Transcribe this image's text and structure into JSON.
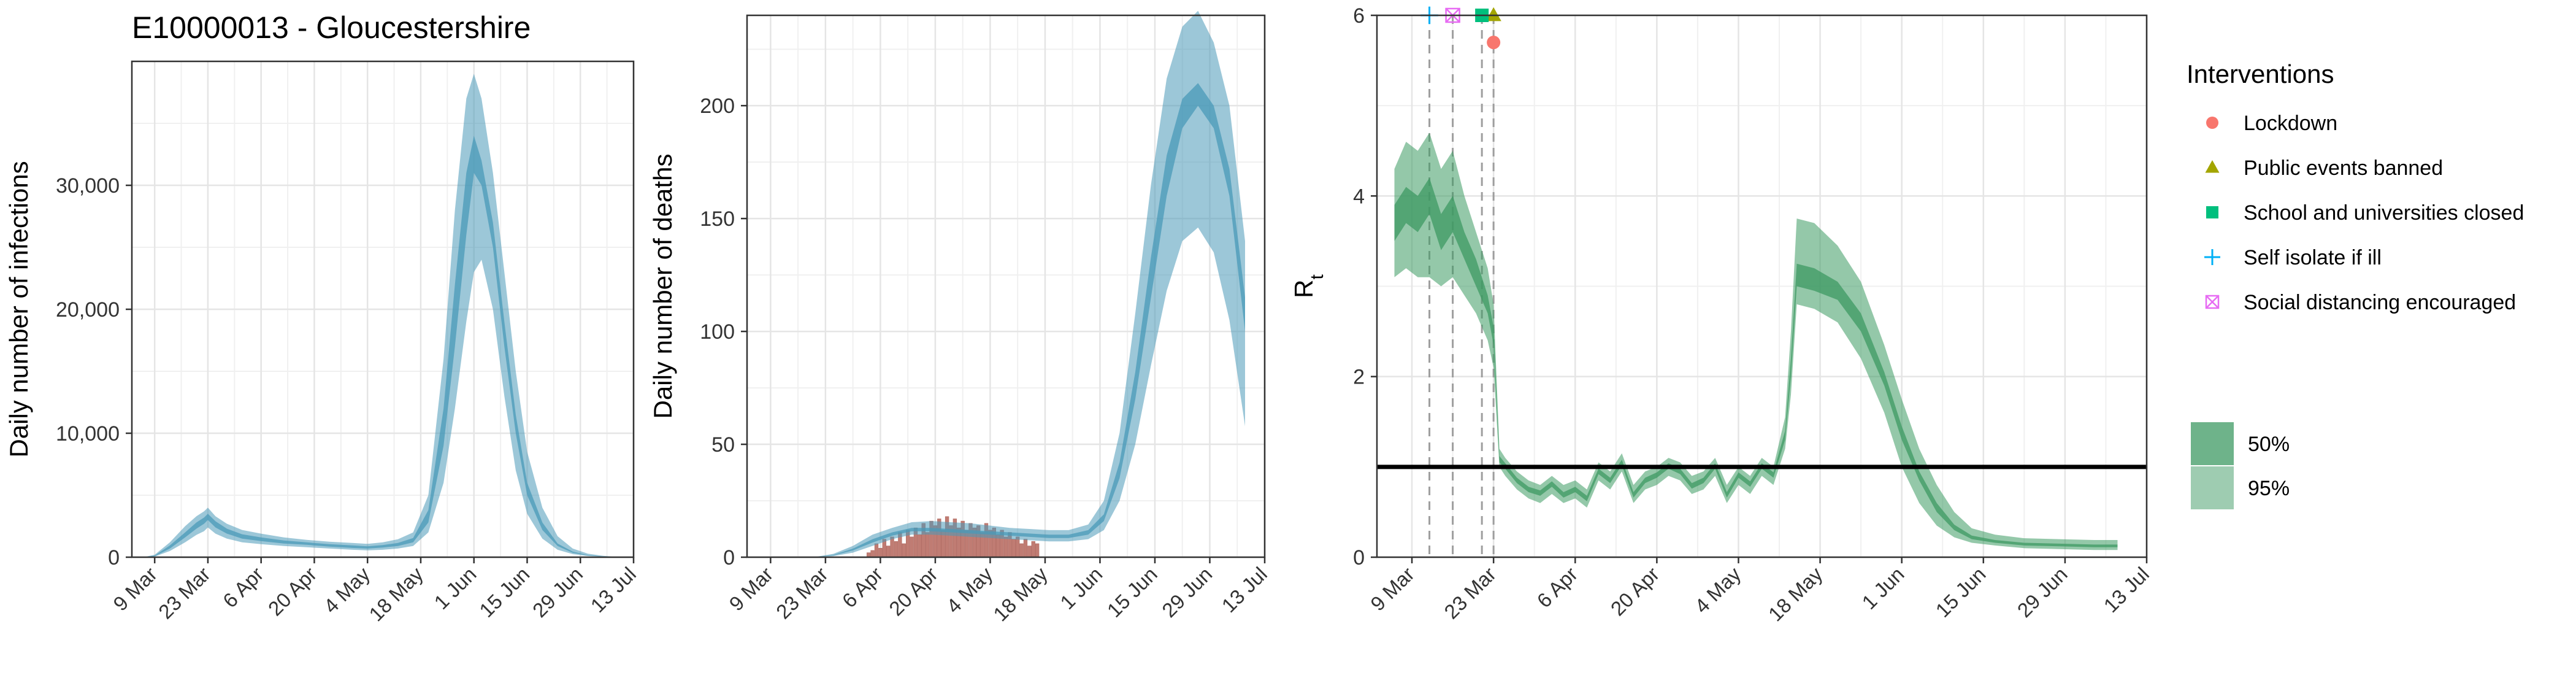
{
  "title": "E10000013 - Gloucestershire",
  "colors": {
    "infections_band": "#4a99b8",
    "deaths_band": "#4a99b8",
    "rt_band": "#3d9a63",
    "observed_deaths": "#c07c73",
    "reference_line": "#000000",
    "intervention_line": "#9e9e9e",
    "lockdown": "#f8766d",
    "public_events": "#a3a500",
    "school": "#00bf7d",
    "self_isolate": "#00b0f6",
    "social_distancing": "#e76bf3"
  },
  "chart_data": [
    {
      "type": "area",
      "xlabel": "",
      "ylabel": "Daily number of infections",
      "x_ticks": [
        "9 Mar",
        "23 Mar",
        "6 Apr",
        "20 Apr",
        "4 May",
        "18 May",
        "1 Jun",
        "15 Jun",
        "29 Jun",
        "13 Jul"
      ],
      "y_ticks": [
        "0",
        "10,000",
        "20,000",
        "30,000"
      ],
      "xlim": [
        "2020-03-03",
        "2020-07-13"
      ],
      "ylim": [
        0,
        40000
      ],
      "grid": true,
      "legend": "none",
      "series": [
        {
          "x": [
            "2020-03-06",
            "2020-03-09",
            "2020-03-13",
            "2020-03-17",
            "2020-03-20",
            "2020-03-22",
            "2020-03-23",
            "2020-03-25",
            "2020-03-28",
            "2020-04-01",
            "2020-04-06",
            "2020-04-12",
            "2020-04-18",
            "2020-04-24",
            "2020-04-30",
            "2020-05-04",
            "2020-05-08",
            "2020-05-12",
            "2020-05-16",
            "2020-05-20",
            "2020-05-24",
            "2020-05-27",
            "2020-05-30",
            "2020-06-01",
            "2020-06-03",
            "2020-06-06",
            "2020-06-09",
            "2020-06-12",
            "2020-06-15",
            "2020-06-19",
            "2020-06-23",
            "2020-06-27",
            "2020-07-01",
            "2020-07-05",
            "2020-07-08"
          ],
          "q025": [
            0,
            50,
            500,
            1200,
            1800,
            2100,
            2400,
            1900,
            1500,
            1200,
            1050,
            900,
            800,
            700,
            600,
            550,
            600,
            700,
            900,
            2000,
            6000,
            12000,
            19000,
            23000,
            24000,
            20000,
            13000,
            7000,
            3500,
            1500,
            600,
            250,
            100,
            40,
            15
          ],
          "q25": [
            0,
            80,
            700,
            1600,
            2300,
            2700,
            3000,
            2400,
            1900,
            1500,
            1300,
            1100,
            1000,
            850,
            750,
            700,
            780,
            900,
            1200,
            2800,
            9000,
            17000,
            26000,
            31000,
            30000,
            25000,
            17000,
            10000,
            5000,
            2200,
            900,
            350,
            130,
            50,
            20
          ],
          "q75": [
            0,
            130,
            950,
            2000,
            2800,
            3200,
            3500,
            2900,
            2300,
            1850,
            1600,
            1350,
            1200,
            1050,
            950,
            880,
            980,
            1150,
            1550,
            3800,
            12000,
            22000,
            31000,
            34000,
            32000,
            27000,
            19000,
            11500,
            6000,
            2800,
            1100,
            450,
            170,
            70,
            25
          ],
          "q975": [
            0,
            200,
            1200,
            2500,
            3300,
            3700,
            4000,
            3300,
            2700,
            2200,
            1900,
            1600,
            1400,
            1250,
            1150,
            1080,
            1200,
            1450,
            2000,
            5000,
            16000,
            28000,
            37000,
            39000,
            37000,
            31000,
            23000,
            15000,
            8500,
            4000,
            1700,
            700,
            280,
            110,
            40
          ]
        }
      ]
    },
    {
      "type": "area",
      "xlabel": "",
      "ylabel": "Daily number of deaths",
      "x_ticks": [
        "9 Mar",
        "23 Mar",
        "6 Apr",
        "20 Apr",
        "4 May",
        "18 May",
        "1 Jun",
        "15 Jun",
        "29 Jun",
        "13 Jul"
      ],
      "y_ticks": [
        "0",
        "50",
        "100",
        "150",
        "200"
      ],
      "xlim": [
        "2020-03-03",
        "2020-07-13"
      ],
      "ylim": [
        0,
        240
      ],
      "grid": true,
      "legend": "none",
      "series": [
        {
          "x": [
            "2020-03-06",
            "2020-03-13",
            "2020-03-20",
            "2020-03-25",
            "2020-03-30",
            "2020-04-04",
            "2020-04-09",
            "2020-04-14",
            "2020-04-19",
            "2020-04-24",
            "2020-04-29",
            "2020-05-04",
            "2020-05-09",
            "2020-05-14",
            "2020-05-19",
            "2020-05-24",
            "2020-05-29",
            "2020-06-02",
            "2020-06-06",
            "2020-06-10",
            "2020-06-14",
            "2020-06-18",
            "2020-06-22",
            "2020-06-26",
            "2020-06-30",
            "2020-07-04",
            "2020-07-08"
          ],
          "q025": [
            0,
            0,
            0,
            0.5,
            2,
            5,
            8,
            10,
            10,
            9.5,
            9,
            8.5,
            8,
            7.5,
            7,
            7,
            8,
            12,
            25,
            50,
            85,
            118,
            140,
            146,
            135,
            105,
            58
          ],
          "q25": [
            0,
            0,
            0,
            0.8,
            3,
            6.5,
            9.5,
            11.5,
            11.5,
            11,
            10.5,
            10,
            9.5,
            9,
            8.5,
            8.5,
            10,
            16,
            35,
            70,
            115,
            160,
            190,
            200,
            190,
            160,
            100
          ],
          "q75": [
            0,
            0,
            0,
            1,
            3.8,
            8,
            11,
            13,
            13,
            12.5,
            12,
            11.5,
            11,
            10.5,
            10,
            10,
            12,
            19,
            42,
            82,
            133,
            178,
            203,
            210,
            200,
            172,
            115
          ],
          "q975": [
            0,
            0,
            0,
            1.5,
            5,
            10,
            13,
            15.5,
            16,
            15.5,
            15,
            14,
            13,
            12.5,
            12,
            12,
            14.5,
            25,
            55,
            108,
            165,
            212,
            235,
            242,
            228,
            200,
            140
          ]
        }
      ],
      "observed_deaths": {
        "x": [
          "2020-04-03",
          "2020-04-04",
          "2020-04-05",
          "2020-04-06",
          "2020-04-07",
          "2020-04-08",
          "2020-04-09",
          "2020-04-10",
          "2020-04-11",
          "2020-04-12",
          "2020-04-13",
          "2020-04-14",
          "2020-04-15",
          "2020-04-16",
          "2020-04-17",
          "2020-04-18",
          "2020-04-19",
          "2020-04-20",
          "2020-04-21",
          "2020-04-22",
          "2020-04-23",
          "2020-04-24",
          "2020-04-25",
          "2020-04-26",
          "2020-04-27",
          "2020-04-28",
          "2020-04-29",
          "2020-04-30",
          "2020-05-01",
          "2020-05-02",
          "2020-05-03",
          "2020-05-04",
          "2020-05-05",
          "2020-05-06",
          "2020-05-07",
          "2020-05-08",
          "2020-05-09",
          "2020-05-10",
          "2020-05-11",
          "2020-05-12",
          "2020-05-13",
          "2020-05-14",
          "2020-05-15",
          "2020-05-16"
        ],
        "values": [
          2,
          3,
          6,
          4,
          8,
          5,
          9,
          7,
          11,
          6,
          12,
          9,
          13,
          10,
          15,
          11,
          16,
          14,
          17,
          12,
          18,
          14,
          17,
          13,
          16,
          12,
          15,
          13,
          14,
          11,
          15,
          12,
          13,
          10,
          12,
          9,
          11,
          8,
          9,
          6,
          8,
          5,
          7,
          6
        ]
      }
    },
    {
      "type": "area",
      "xlabel": "",
      "ylabel": "R",
      "ylabel_subscript": "t",
      "x_ticks": [
        "9 Mar",
        "23 Mar",
        "6 Apr",
        "20 Apr",
        "4 May",
        "18 May",
        "1 Jun",
        "15 Jun",
        "29 Jun",
        "13 Jul"
      ],
      "y_ticks": [
        "0",
        "2",
        "4",
        "6"
      ],
      "xlim": [
        "2020-03-03",
        "2020-07-13"
      ],
      "ylim": [
        0,
        6
      ],
      "grid": true,
      "legend": "right",
      "reference_line": 1,
      "series": [
        {
          "x": [
            "2020-03-06",
            "2020-03-08",
            "2020-03-10",
            "2020-03-12",
            "2020-03-14",
            "2020-03-16",
            "2020-03-18",
            "2020-03-20",
            "2020-03-22",
            "2020-03-23",
            "2020-03-24",
            "2020-03-25",
            "2020-03-27",
            "2020-03-29",
            "2020-03-31",
            "2020-04-02",
            "2020-04-04",
            "2020-04-06",
            "2020-04-08",
            "2020-04-10",
            "2020-04-12",
            "2020-04-14",
            "2020-04-16",
            "2020-04-18",
            "2020-04-20",
            "2020-04-22",
            "2020-04-24",
            "2020-04-26",
            "2020-04-28",
            "2020-04-30",
            "2020-05-02",
            "2020-05-04",
            "2020-05-06",
            "2020-05-08",
            "2020-05-10",
            "2020-05-12",
            "2020-05-13",
            "2020-05-14",
            "2020-05-17",
            "2020-05-21",
            "2020-05-25",
            "2020-05-29",
            "2020-06-01",
            "2020-06-04",
            "2020-06-07",
            "2020-06-10",
            "2020-06-13",
            "2020-06-17",
            "2020-06-22",
            "2020-06-28",
            "2020-07-04",
            "2020-07-08"
          ],
          "q025": [
            3.1,
            3.2,
            3.1,
            3.1,
            3.0,
            3.1,
            2.9,
            2.7,
            2.4,
            2.1,
            1.0,
            0.9,
            0.75,
            0.65,
            0.6,
            0.7,
            0.6,
            0.65,
            0.55,
            0.85,
            0.75,
            0.95,
            0.6,
            0.75,
            0.8,
            0.9,
            0.85,
            0.7,
            0.75,
            0.9,
            0.6,
            0.8,
            0.7,
            0.9,
            0.8,
            1.2,
            1.8,
            2.8,
            2.75,
            2.6,
            2.2,
            1.6,
            1.0,
            0.6,
            0.35,
            0.22,
            0.16,
            0.13,
            0.1,
            0.09,
            0.08,
            0.08
          ],
          "q25": [
            3.5,
            3.7,
            3.6,
            3.8,
            3.4,
            3.6,
            3.3,
            3.0,
            2.7,
            2.35,
            1.05,
            0.98,
            0.82,
            0.72,
            0.68,
            0.78,
            0.66,
            0.72,
            0.62,
            0.92,
            0.82,
            1.02,
            0.66,
            0.82,
            0.88,
            0.98,
            0.92,
            0.76,
            0.82,
            0.98,
            0.66,
            0.88,
            0.78,
            0.98,
            0.88,
            1.3,
            2.0,
            3.0,
            2.95,
            2.85,
            2.5,
            1.9,
            1.3,
            0.85,
            0.5,
            0.3,
            0.2,
            0.16,
            0.13,
            0.12,
            0.11,
            0.11
          ],
          "q75": [
            3.9,
            4.1,
            4.0,
            4.2,
            3.8,
            4.0,
            3.6,
            3.3,
            2.9,
            2.55,
            1.12,
            1.04,
            0.88,
            0.78,
            0.74,
            0.84,
            0.72,
            0.78,
            0.68,
            0.98,
            0.88,
            1.08,
            0.72,
            0.88,
            0.94,
            1.04,
            0.98,
            0.82,
            0.88,
            1.04,
            0.72,
            0.94,
            0.84,
            1.04,
            0.94,
            1.4,
            2.2,
            3.25,
            3.2,
            3.05,
            2.7,
            2.05,
            1.45,
            0.95,
            0.6,
            0.36,
            0.24,
            0.19,
            0.16,
            0.15,
            0.14,
            0.14
          ],
          "q975": [
            4.3,
            4.6,
            4.5,
            4.7,
            4.3,
            4.5,
            4.0,
            3.6,
            3.2,
            2.8,
            1.2,
            1.1,
            0.95,
            0.85,
            0.8,
            0.9,
            0.8,
            0.85,
            0.75,
            1.05,
            0.95,
            1.15,
            0.8,
            0.95,
            1.0,
            1.1,
            1.05,
            0.9,
            0.95,
            1.1,
            0.8,
            1.0,
            0.9,
            1.1,
            1.0,
            1.55,
            2.5,
            3.75,
            3.7,
            3.45,
            3.05,
            2.35,
            1.75,
            1.2,
            0.8,
            0.5,
            0.32,
            0.25,
            0.21,
            0.2,
            0.19,
            0.19
          ]
        }
      ],
      "interventions": [
        {
          "label": "Lockdown",
          "date": "2020-03-23",
          "marker_y": 5.7,
          "shape": "circle",
          "color": "#f8766d"
        },
        {
          "label": "Public events banned",
          "date": "2020-03-23",
          "marker_y": 6.0,
          "shape": "triangle",
          "color": "#a3a500"
        },
        {
          "label": "School and universities closed",
          "date": "2020-03-21",
          "marker_y": 6.0,
          "shape": "square",
          "color": "#00bf7d"
        },
        {
          "label": "Self isolate if ill",
          "date": "2020-03-12",
          "marker_y": 6.0,
          "shape": "plus",
          "color": "#00b0f6"
        },
        {
          "label": "Social distancing encouraged",
          "date": "2020-03-16",
          "marker_y": 6.0,
          "shape": "boxx",
          "color": "#e76bf3"
        }
      ]
    }
  ],
  "legend": {
    "title": "Interventions",
    "items": [
      {
        "label": "Lockdown",
        "shape": "circle",
        "color": "#f8766d"
      },
      {
        "label": "Public events banned",
        "shape": "triangle",
        "color": "#a3a500"
      },
      {
        "label": "School and universities closed",
        "shape": "square",
        "color": "#00bf7d"
      },
      {
        "label": "Self isolate if ill",
        "shape": "plus",
        "color": "#00b0f6"
      },
      {
        "label": "Social distancing encouraged",
        "shape": "boxx",
        "color": "#e76bf3"
      }
    ],
    "bands": [
      {
        "label": "50%",
        "opacity": 0.75
      },
      {
        "label": "95%",
        "opacity": 0.5
      }
    ]
  }
}
